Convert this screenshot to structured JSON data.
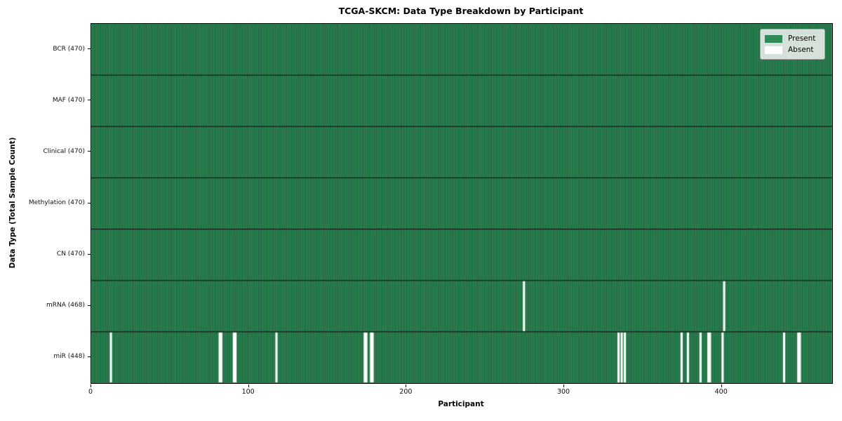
{
  "chart_data": {
    "type": "heatmap",
    "title": "TCGA-SKCM: Data Type Breakdown by Participant",
    "xlabel": "Participant",
    "ylabel": "Data Type (Total Sample Count)",
    "n_participants": 470,
    "xlim": [
      0,
      470
    ],
    "x_ticks": [
      0,
      100,
      200,
      300,
      400
    ],
    "grid": false,
    "legend_position": "upper right",
    "rows": [
      {
        "name": "BCR",
        "label": "BCR (470)",
        "total_samples": 470,
        "absent_participants": []
      },
      {
        "name": "MAF",
        "label": "MAF (470)",
        "total_samples": 470,
        "absent_participants": []
      },
      {
        "name": "Clinical",
        "label": "Clinical (470)",
        "total_samples": 470,
        "absent_participants": []
      },
      {
        "name": "Methylation",
        "label": "Methylation (470)",
        "total_samples": 470,
        "absent_participants": []
      },
      {
        "name": "CN",
        "label": "CN (470)",
        "total_samples": 470,
        "absent_participants": []
      },
      {
        "name": "mRNA",
        "label": "mRNA (468)",
        "total_samples": 468,
        "absent_participants": [
          274,
          401
        ]
      },
      {
        "name": "miR",
        "label": "miR (448)",
        "total_samples": 448,
        "absent_participants": [
          12,
          81,
          82,
          90,
          91,
          117,
          173,
          174,
          177,
          178,
          334,
          336,
          338,
          374,
          378,
          386,
          391,
          392,
          400,
          439,
          448,
          449
        ]
      }
    ],
    "legend": [
      {
        "label": "Present",
        "color": "#2e8b57"
      },
      {
        "label": "Absent",
        "color": "#ffffff"
      }
    ],
    "colors": {
      "present": "#2e8b57",
      "absent": "#ffffff",
      "cell_edge": "#1b4f33",
      "row_divider": "#141414",
      "axis": "#000000",
      "legend_bg": "#e5eae5",
      "legend_border": "#a6a6a6"
    }
  }
}
